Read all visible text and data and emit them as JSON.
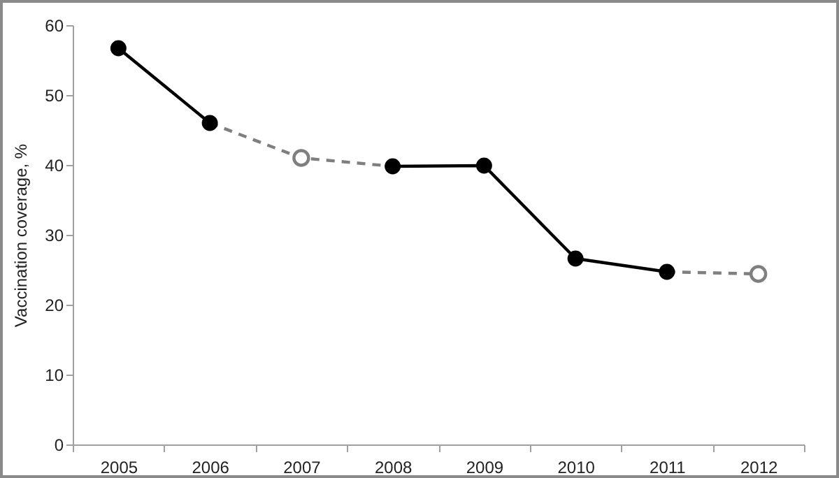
{
  "chart_data": {
    "type": "line",
    "ylabel": "Vaccination coverage, %",
    "categories": [
      "2005",
      "2006",
      "2007",
      "2008",
      "2009",
      "2010",
      "2011",
      "2012"
    ],
    "series": [
      {
        "color": "#7f7f7f",
        "line_style": "dashed",
        "marker": "none",
        "values": [
          null,
          46.0,
          41.0,
          39.8,
          null,
          null,
          24.7,
          24.4
        ]
      },
      {
        "type": "scatter",
        "color": "#7f7f7f",
        "marker": "circle",
        "values": [
          null,
          null,
          41.0,
          null,
          null,
          null,
          null,
          24.4
        ]
      },
      {
        "color": "#000000",
        "line_style": "solid",
        "marker": "circle",
        "values": [
          56.7,
          46.0,
          null,
          39.8,
          39.9,
          26.6,
          24.7,
          null
        ]
      }
    ],
    "ylim": [
      0,
      60
    ],
    "yticks": [
      0,
      10,
      20,
      30,
      40,
      50,
      60
    ],
    "grid": false
  }
}
